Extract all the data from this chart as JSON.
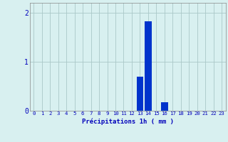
{
  "hours": [
    0,
    1,
    2,
    3,
    4,
    5,
    6,
    7,
    8,
    9,
    10,
    11,
    12,
    13,
    14,
    15,
    16,
    17,
    18,
    19,
    20,
    21,
    22,
    23
  ],
  "values": [
    0,
    0,
    0,
    0,
    0,
    0,
    0,
    0,
    0,
    0,
    0,
    0,
    0,
    0.7,
    1.82,
    0,
    0.18,
    0,
    0,
    0,
    0,
    0,
    0,
    0
  ],
  "bar_color": "#0033cc",
  "background_color": "#d8f0f0",
  "grid_color": "#aac8c8",
  "xlabel": "Précipitations 1h ( mm )",
  "xlabel_color": "#0000bb",
  "tick_color": "#0000bb",
  "spine_color": "#888888",
  "ylim": [
    0,
    2.2
  ],
  "yticks": [
    0,
    1,
    2
  ],
  "xlim": [
    -0.5,
    23.5
  ],
  "bar_width": 0.85,
  "tick_fontsize": 5.2,
  "label_fontsize": 6.5
}
